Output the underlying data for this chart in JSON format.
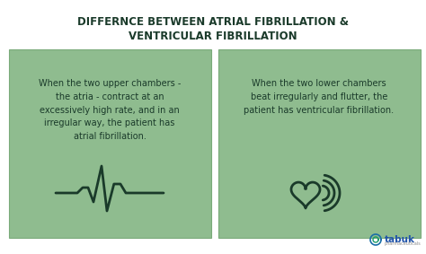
{
  "bg_color": "#ffffff",
  "box_color": "#8fbc8f",
  "title_line1": "DIFFERNCE BETWEEN ATRIAL FIBRILLATION &",
  "title_line2": "VENTRICULAR FIBRILLATION",
  "title_color": "#1a3a2a",
  "title_fontsize": 8.5,
  "left_text": "When the two upper chambers -\nthe atria - contract at an\nexcessively high rate, and in an\nirregular way, the patient has\natrial fibrillation.",
  "right_text": "When the two lower chambers\nbeat irregularly and flutter, the\npatient has ventricular fibrillation.",
  "text_color": "#1a3a2a",
  "text_fontsize": 7.0,
  "box_border_color": "#7aaa7a",
  "icon_color": "#1a3a2a",
  "logo_color": "#2255aa",
  "logo_text_color": "#2255aa",
  "logo_sub_color": "#888888"
}
